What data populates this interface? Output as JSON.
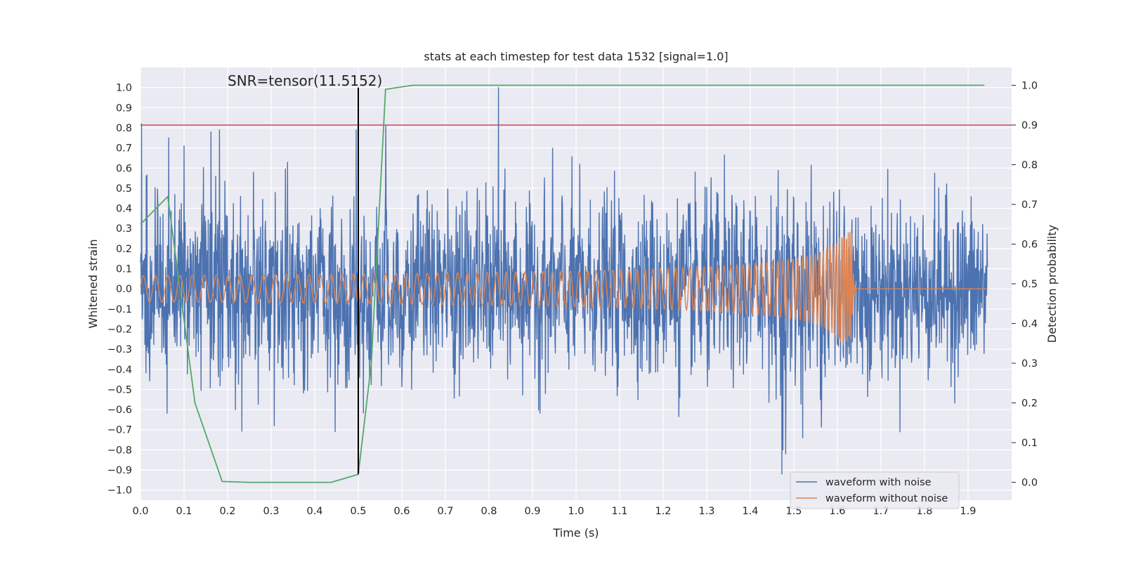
{
  "chart_data": {
    "type": "line",
    "title": "stats at each timestep for test data 1532 [signal=1.0]",
    "xlabel": "Time (s)",
    "ylabel": "Whitened strain",
    "y2label": "Detection probability",
    "xlim": [
      0.0,
      2.0
    ],
    "ylim": [
      -1.05,
      1.1
    ],
    "y2lim": [
      -0.045,
      1.045
    ],
    "xticks": [
      0.0,
      0.1,
      0.2,
      0.3,
      0.4,
      0.5,
      0.6,
      0.7,
      0.8,
      0.9,
      1.0,
      1.1,
      1.2,
      1.3,
      1.4,
      1.5,
      1.6,
      1.7,
      1.8,
      1.9
    ],
    "xtick_labels": [
      "0.0",
      "0.1",
      "0.2",
      "0.3",
      "0.4",
      "0.5",
      "0.6",
      "0.7",
      "0.8",
      "0.9",
      "1.0",
      "1.1",
      "1.2",
      "1.3",
      "1.4",
      "1.5",
      "1.6",
      "1.7",
      "1.8",
      "1.9"
    ],
    "yticks": [
      1.0,
      0.9,
      0.8,
      0.7,
      0.6,
      0.5,
      0.4,
      0.3,
      0.2,
      0.1,
      0.0,
      -0.1,
      -0.2,
      -0.3,
      -0.4,
      -0.5,
      -0.6,
      -0.7,
      -0.8,
      -0.9,
      -1.0
    ],
    "ytick_labels": [
      "1.0",
      "0.9",
      "0.8",
      "0.7",
      "0.6",
      "0.5",
      "0.4",
      "0.3",
      "0.2",
      "0.1",
      "0.0",
      "−0.1",
      "−0.2",
      "−0.3",
      "−0.4",
      "−0.5",
      "−0.6",
      "−0.7",
      "−0.8",
      "−0.9",
      "−1.0"
    ],
    "y2ticks": [
      1.0,
      0.9,
      0.8,
      0.7,
      0.6,
      0.5,
      0.4,
      0.3,
      0.2,
      0.1,
      0.0
    ],
    "y2tick_labels": [
      "1.0",
      "0.9",
      "0.8",
      "0.7",
      "0.6",
      "0.5",
      "0.4",
      "0.3",
      "0.2",
      "0.1",
      "0.0"
    ],
    "series": [
      {
        "name": "waveform with noise",
        "axis": "left",
        "color": "#4c72b0",
        "description": "noisy whitened strain, ~2500 samples, amplitude mostly within ±0.5 with spikes up to 1.0",
        "noise_std": 0.21,
        "marked_spikes": [
          {
            "x": 0.002,
            "y": 0.82
          },
          {
            "x": 0.065,
            "y": 0.75
          },
          {
            "x": 0.1,
            "y": 0.71
          },
          {
            "x": 0.162,
            "y": 0.78
          },
          {
            "x": 0.181,
            "y": 0.79
          },
          {
            "x": 0.822,
            "y": 1.0
          },
          {
            "x": 0.563,
            "y": 0.81
          },
          {
            "x": 0.495,
            "y": 0.79
          },
          {
            "x": 0.218,
            "y": -0.6
          },
          {
            "x": 0.307,
            "y": -0.68
          },
          {
            "x": 0.447,
            "y": -0.71
          },
          {
            "x": 0.5,
            "y": -0.9
          },
          {
            "x": 1.473,
            "y": -0.92
          },
          {
            "x": 1.52,
            "y": -0.74
          },
          {
            "x": 1.475,
            "y": -0.8
          }
        ]
      },
      {
        "name": "waveform without noise",
        "axis": "left",
        "color": "#dd8452",
        "description": "chirp: amplitude ~0.065 rising to ~0.28 at merger t≈1.63 s, frequency ~35 Hz rising to ~250 Hz, then ~0 after 1.64 s",
        "amplitude_start": 0.065,
        "amplitude_peak": 0.28,
        "freq_start_hz": 35,
        "freq_end_hz": 250,
        "merger_time": 1.633
      },
      {
        "name": "detection probability",
        "axis": "right",
        "color": "#55a868",
        "x": [
          0.0,
          0.0625,
          0.125,
          0.1875,
          0.25,
          0.3125,
          0.375,
          0.4375,
          0.5,
          0.53,
          0.5625,
          0.625,
          0.6875,
          0.75,
          0.8,
          0.9,
          1.0,
          1.1,
          1.2,
          1.3,
          1.4,
          1.5,
          1.6,
          1.7,
          1.8,
          1.9,
          1.9375
        ],
        "values": [
          0.65,
          0.72,
          0.2,
          0.002,
          0.0,
          0.0,
          0.0,
          0.0,
          0.02,
          0.3,
          0.99,
          1.0,
          1.0,
          1.0,
          1.0,
          1.0,
          1.0,
          1.0,
          1.0,
          1.0,
          1.0,
          1.0,
          1.0,
          1.0,
          1.0,
          1.0,
          1.0
        ]
      }
    ],
    "threshold_line": {
      "axis": "right",
      "value": 0.9,
      "color": "#c44e52"
    },
    "marker_line": {
      "x": 0.5,
      "y_from": -0.92,
      "y_to": 1.0,
      "color": "#000000"
    },
    "annotation": {
      "text": "SNR=tensor(11.5152)",
      "x": 0.2,
      "y": 1.01
    },
    "legend": {
      "placement": "lower-right",
      "entries": [
        {
          "label": "waveform with noise",
          "color": "#4c72b0"
        },
        {
          "label": "waveform without noise",
          "color": "#dd8452"
        }
      ]
    }
  }
}
